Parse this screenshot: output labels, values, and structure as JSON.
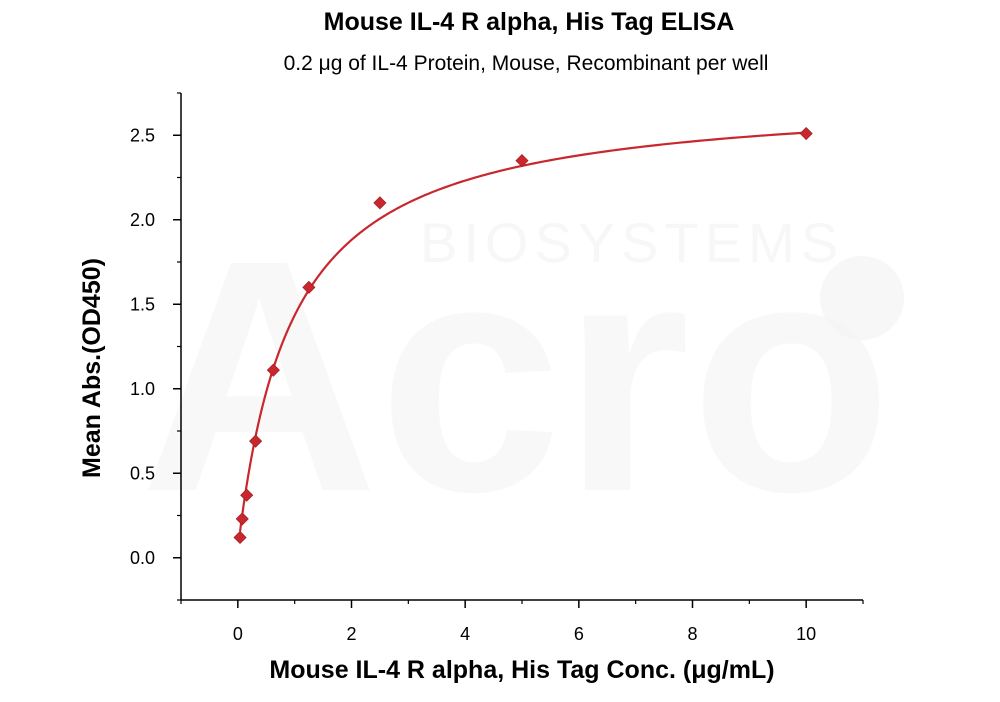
{
  "chart_data": {
    "type": "scatter",
    "title": "Mouse IL-4 R alpha, His Tag ELISA",
    "subtitle": "0.2 μg of IL-4 Protein, Mouse, Recombinant per well",
    "xlabel": "Mouse IL-4 R alpha, His Tag Conc. (μg/mL)",
    "ylabel": "Mean Abs.(OD450)",
    "xlim": [
      -1,
      11
    ],
    "ylim": [
      -0.25,
      2.75
    ],
    "xticks": [
      0,
      2,
      4,
      6,
      8,
      10
    ],
    "yticks": [
      0.0,
      0.5,
      1.0,
      1.5,
      2.0,
      2.5
    ],
    "xtick_labels": [
      "0",
      "2",
      "4",
      "6",
      "8",
      "10"
    ],
    "ytick_labels": [
      "0.0",
      "0.5",
      "1.0",
      "1.5",
      "2.0",
      "2.5"
    ],
    "grid": false,
    "legend": "none",
    "color": "#c8282d",
    "series": [
      {
        "x": [
          0.039,
          0.078,
          0.156,
          0.3125,
          0.625,
          1.25,
          2.5,
          5,
          10
        ],
        "y": [
          0.12,
          0.23,
          0.37,
          0.69,
          1.11,
          1.6,
          2.1,
          2.35,
          2.51
        ]
      }
    ],
    "fit": {
      "type": "4PL",
      "bottom": 0.05,
      "top": 2.75,
      "ec50": 0.95,
      "hill": 1.0
    }
  },
  "watermark": {
    "logo": "Acro",
    "company": "BIOSYSTEMS"
  }
}
